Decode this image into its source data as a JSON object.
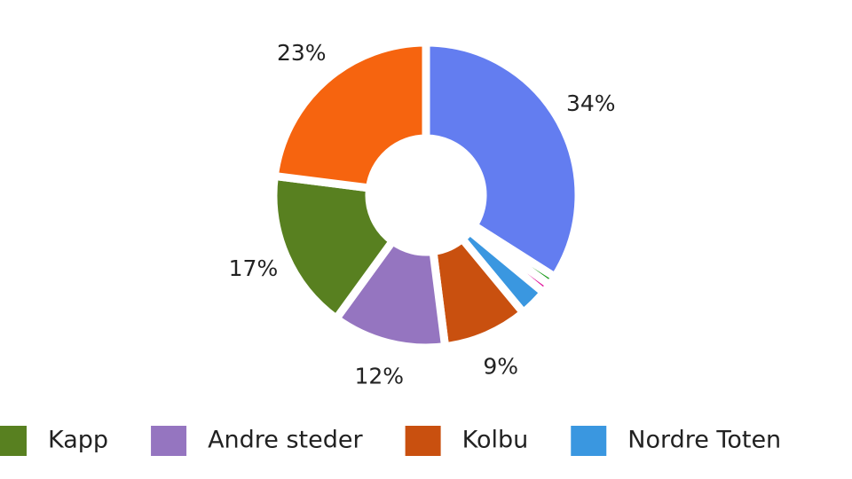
{
  "chart_data": {
    "type": "pie",
    "categories": [
      null,
      null,
      null,
      "Nordre Toten",
      "Kolbu",
      "Andre steder",
      "Kapp",
      null
    ],
    "values": [
      34,
      1,
      1,
      3,
      9,
      12,
      17,
      23
    ],
    "value_labels": [
      "34%",
      null,
      null,
      null,
      "9%",
      "12%",
      "17%",
      "23%"
    ],
    "colors": [
      "#637df0",
      "#1a9a1a",
      "#e0109a",
      "#3a97e0",
      "#c9500f",
      "#9575c0",
      "#588020",
      "#f6640f"
    ],
    "donut": true,
    "legend": "bottom"
  }
}
